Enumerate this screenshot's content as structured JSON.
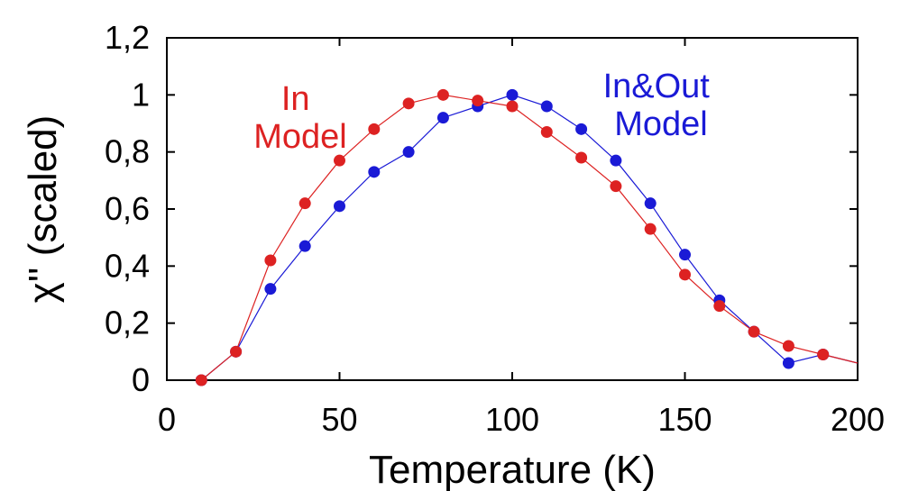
{
  "chart_data": {
    "type": "line",
    "xlabel": "Temperature (K)",
    "ylabel": "χ'' (scaled)",
    "xlim": [
      0,
      200
    ],
    "ylim": [
      0,
      1.2
    ],
    "x_ticks": [
      "0",
      "50",
      "100",
      "150",
      "200"
    ],
    "y_ticks": [
      "0",
      "0,2",
      "0,4",
      "0,6",
      "0,8",
      "1",
      "1,2"
    ],
    "grid": false,
    "series": [
      {
        "name": "In Model",
        "color": "#dd2222",
        "x": [
          10,
          20,
          30,
          40,
          50,
          60,
          70,
          80,
          90,
          100,
          110,
          120,
          130,
          140,
          150,
          160,
          170,
          180,
          190,
          200
        ],
        "y": [
          0.0,
          0.1,
          0.42,
          0.62,
          0.77,
          0.88,
          0.97,
          1.0,
          0.98,
          0.96,
          0.87,
          0.78,
          0.68,
          0.53,
          0.37,
          0.26,
          0.17,
          0.12,
          0.09,
          0.06
        ]
      },
      {
        "name": "In&Out Model",
        "color": "#1a1ad6",
        "x": [
          10,
          20,
          30,
          40,
          50,
          60,
          70,
          80,
          90,
          100,
          110,
          120,
          130,
          140,
          150,
          160,
          170,
          180,
          190,
          200
        ],
        "y": [
          0.0,
          0.1,
          0.32,
          0.47,
          0.61,
          0.73,
          0.8,
          0.92,
          0.96,
          1.0,
          0.96,
          0.88,
          0.77,
          0.62,
          0.44,
          0.28,
          0.17,
          0.06,
          0.09,
          0.06
        ]
      }
    ],
    "annotations": [
      {
        "lines": [
          "In",
          "Model"
        ],
        "color": "#dd2222"
      },
      {
        "lines": [
          "In&Out",
          "Model"
        ],
        "color": "#1a1ad6"
      }
    ]
  }
}
